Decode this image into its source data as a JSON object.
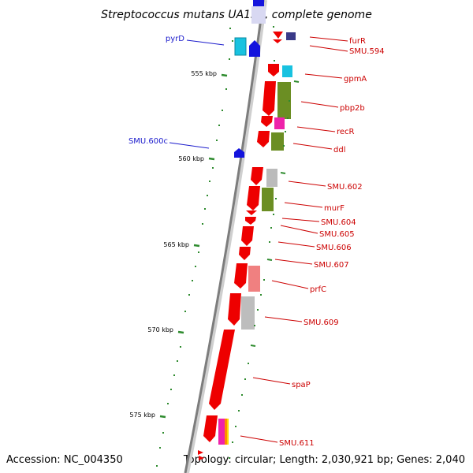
{
  "title": "Streptococcus mutans UA159, complete genome",
  "accession": "Accession: NC_004350",
  "topology": "Topology: circular; Length: 2,030,921 bp; Genes: 2,040",
  "colors": {
    "reverse_label": "#1a1acc",
    "forward_label": "#cc0000",
    "backbone": "#888888",
    "tick": "#2e8b2e"
  },
  "scale_labels": [
    "555 kbp",
    "560 kbp",
    "565 kbp",
    "570 kbp",
    "575 kbp"
  ],
  "reverse_genes": [
    {
      "label": "pyrD"
    },
    {
      "label": "SMU.600c"
    }
  ],
  "forward_genes": [
    {
      "label": "furR"
    },
    {
      "label": "SMU.594"
    },
    {
      "label": "gpmA"
    },
    {
      "label": "pbp2b"
    },
    {
      "label": "recR"
    },
    {
      "label": "ddl"
    },
    {
      "label": "SMU.602"
    },
    {
      "label": "murF"
    },
    {
      "label": "SMU.604"
    },
    {
      "label": "SMU.605"
    },
    {
      "label": "SMU.606"
    },
    {
      "label": "SMU.607"
    },
    {
      "label": "prfC"
    },
    {
      "label": "SMU.609"
    },
    {
      "label": "spaP"
    },
    {
      "label": "SMU.611"
    }
  ]
}
